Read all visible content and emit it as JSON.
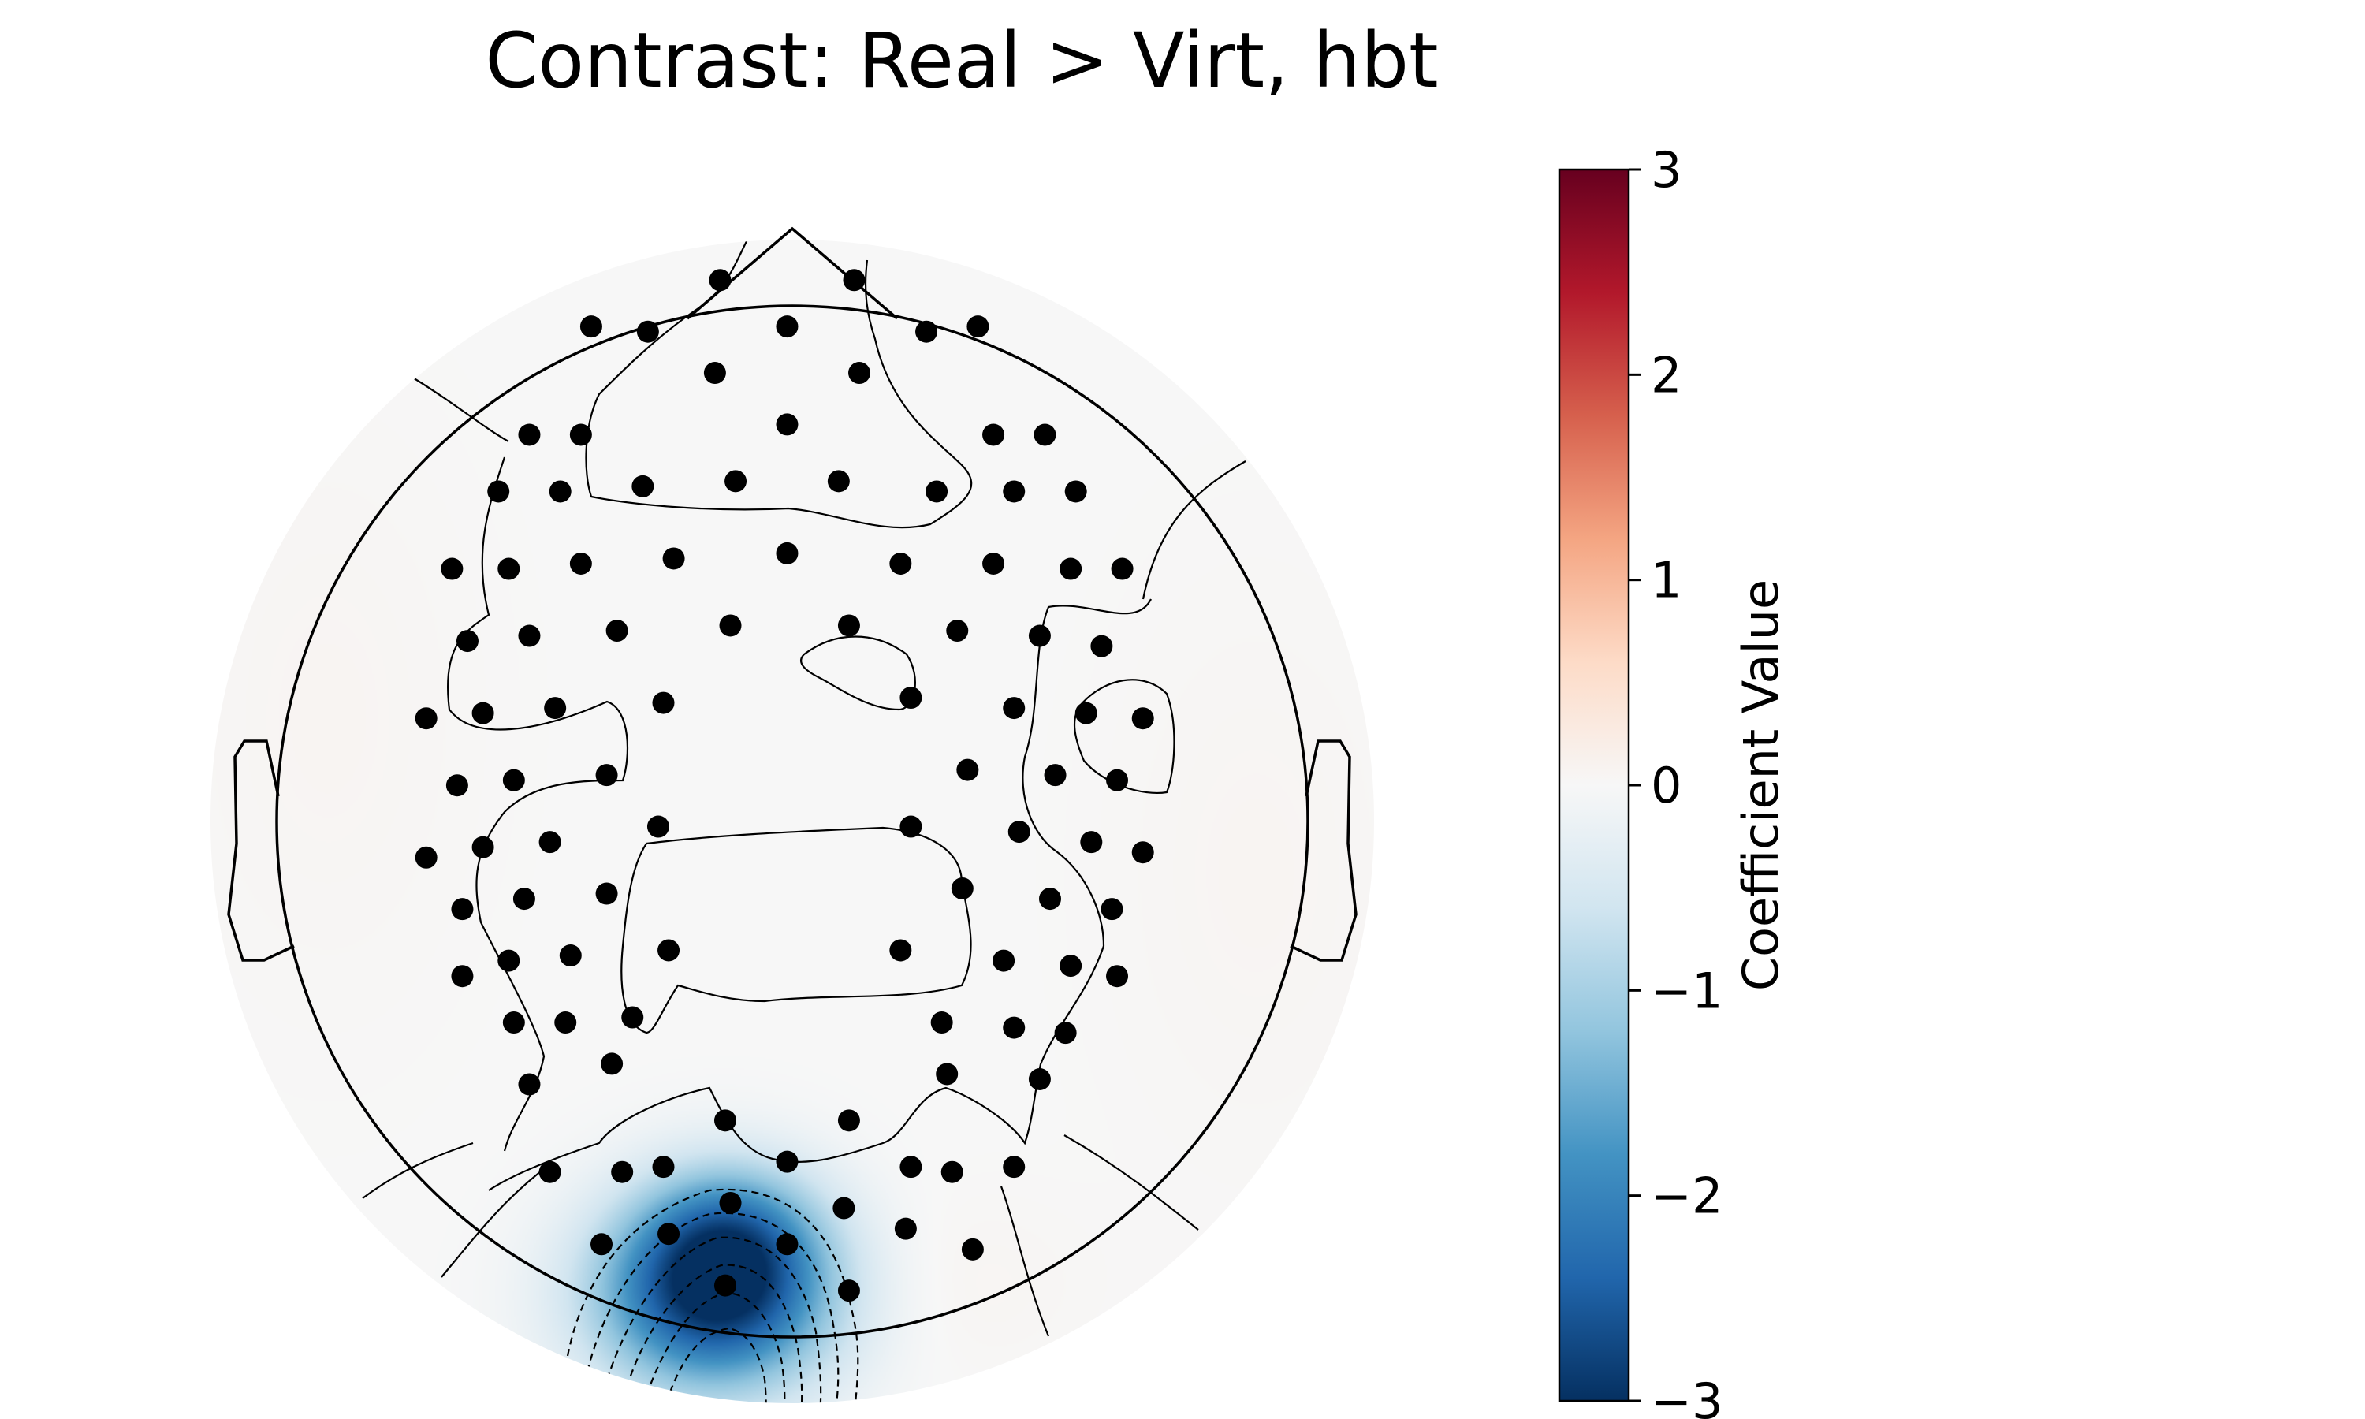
{
  "chart_data": {
    "type": "heatmap",
    "subtype": "topomap",
    "title": "Contrast: Real > Virt, hbt",
    "colorbar": {
      "label": "Coefficient Value",
      "vmin": -3,
      "vmax": 3,
      "ticks": [
        3,
        2,
        1,
        0,
        -1,
        -2,
        -3
      ],
      "tick_labels": [
        "3",
        "2",
        "1",
        "0",
        "−1",
        "−2",
        "−3"
      ],
      "colormap": "RdBu_r",
      "colormap_stops": [
        "#053061",
        "#2166ac",
        "#4393c3",
        "#92c5de",
        "#d1e5f0",
        "#f7f7f7",
        "#fddbc7",
        "#f4a582",
        "#d6604d",
        "#b2182b",
        "#67001f"
      ]
    },
    "field": {
      "background_value": 0.0,
      "blobs": [
        {
          "x": -0.15,
          "y": -0.92,
          "amplitude": -2.9,
          "sigma_x": 0.16,
          "sigma_y": 0.13
        },
        {
          "x": -0.12,
          "y": -0.8,
          "amplitude": -1.2,
          "sigma_x": 0.12,
          "sigma_y": 0.1
        },
        {
          "x": 0.25,
          "y": -0.9,
          "amplitude": 0.08,
          "sigma_x": 0.2,
          "sigma_y": 0.12
        },
        {
          "x": -0.9,
          "y": 0.2,
          "amplitude": 0.06,
          "sigma_x": 0.2,
          "sigma_y": 0.4
        },
        {
          "x": 0.9,
          "y": -0.1,
          "amplitude": 0.06,
          "sigma_x": 0.2,
          "sigma_y": 0.4
        }
      ]
    },
    "sensors": [
      [
        -0.14,
        1.05
      ],
      [
        0.12,
        1.05
      ],
      [
        -0.39,
        0.96
      ],
      [
        -0.28,
        0.95
      ],
      [
        -0.01,
        0.96
      ],
      [
        0.26,
        0.95
      ],
      [
        0.36,
        0.96
      ],
      [
        -0.15,
        0.87
      ],
      [
        0.13,
        0.87
      ],
      [
        -0.51,
        0.75
      ],
      [
        -0.41,
        0.75
      ],
      [
        -0.01,
        0.77
      ],
      [
        0.39,
        0.75
      ],
      [
        0.49,
        0.75
      ],
      [
        -0.57,
        0.64
      ],
      [
        -0.45,
        0.64
      ],
      [
        -0.29,
        0.65
      ],
      [
        -0.11,
        0.66
      ],
      [
        0.09,
        0.66
      ],
      [
        0.28,
        0.64
      ],
      [
        0.43,
        0.64
      ],
      [
        0.55,
        0.64
      ],
      [
        -0.66,
        0.49
      ],
      [
        -0.55,
        0.49
      ],
      [
        -0.41,
        0.5
      ],
      [
        -0.23,
        0.51
      ],
      [
        -0.01,
        0.52
      ],
      [
        0.21,
        0.5
      ],
      [
        0.39,
        0.5
      ],
      [
        0.54,
        0.49
      ],
      [
        0.64,
        0.49
      ],
      [
        -0.63,
        0.35
      ],
      [
        -0.51,
        0.36
      ],
      [
        -0.34,
        0.37
      ],
      [
        -0.12,
        0.38
      ],
      [
        0.11,
        0.38
      ],
      [
        0.32,
        0.37
      ],
      [
        0.48,
        0.36
      ],
      [
        0.6,
        0.34
      ],
      [
        -0.71,
        0.2
      ],
      [
        -0.6,
        0.21
      ],
      [
        -0.46,
        0.22
      ],
      [
        -0.25,
        0.23
      ],
      [
        0.23,
        0.24
      ],
      [
        0.43,
        0.22
      ],
      [
        0.57,
        0.21
      ],
      [
        0.68,
        0.2
      ],
      [
        -0.65,
        0.07
      ],
      [
        -0.54,
        0.08
      ],
      [
        -0.36,
        0.09
      ],
      [
        0.34,
        0.1
      ],
      [
        0.51,
        0.09
      ],
      [
        0.63,
        0.08
      ],
      [
        -0.71,
        -0.07
      ],
      [
        -0.6,
        -0.05
      ],
      [
        -0.47,
        -0.04
      ],
      [
        -0.26,
        -0.01
      ],
      [
        0.23,
        -0.01
      ],
      [
        0.44,
        -0.02
      ],
      [
        0.58,
        -0.04
      ],
      [
        0.68,
        -0.06
      ],
      [
        -0.64,
        -0.17
      ],
      [
        -0.52,
        -0.15
      ],
      [
        -0.36,
        -0.14
      ],
      [
        0.33,
        -0.13
      ],
      [
        0.5,
        -0.15
      ],
      [
        0.62,
        -0.17
      ],
      [
        -0.64,
        -0.3
      ],
      [
        -0.55,
        -0.27
      ],
      [
        -0.43,
        -0.26
      ],
      [
        -0.24,
        -0.25
      ],
      [
        0.21,
        -0.25
      ],
      [
        0.41,
        -0.27
      ],
      [
        0.54,
        -0.28
      ],
      [
        0.63,
        -0.3
      ],
      [
        -0.54,
        -0.39
      ],
      [
        -0.44,
        -0.39
      ],
      [
        -0.31,
        -0.38
      ],
      [
        0.29,
        -0.39
      ],
      [
        0.43,
        -0.4
      ],
      [
        0.53,
        -0.41
      ],
      [
        -0.51,
        -0.51
      ],
      [
        -0.35,
        -0.47
      ],
      [
        0.3,
        -0.49
      ],
      [
        0.48,
        -0.5
      ],
      [
        -0.13,
        -0.58
      ],
      [
        0.11,
        -0.58
      ],
      [
        -0.47,
        -0.68
      ],
      [
        -0.33,
        -0.68
      ],
      [
        -0.25,
        -0.67
      ],
      [
        -0.01,
        -0.66
      ],
      [
        0.23,
        -0.67
      ],
      [
        0.31,
        -0.68
      ],
      [
        0.43,
        -0.67
      ],
      [
        -0.12,
        -0.74
      ],
      [
        0.1,
        -0.75
      ],
      [
        0.22,
        -0.79
      ],
      [
        -0.37,
        -0.82
      ],
      [
        -0.24,
        -0.8
      ],
      [
        -0.01,
        -0.82
      ],
      [
        0.35,
        -0.83
      ],
      [
        -0.13,
        -0.9
      ],
      [
        0.11,
        -0.91
      ]
    ]
  }
}
